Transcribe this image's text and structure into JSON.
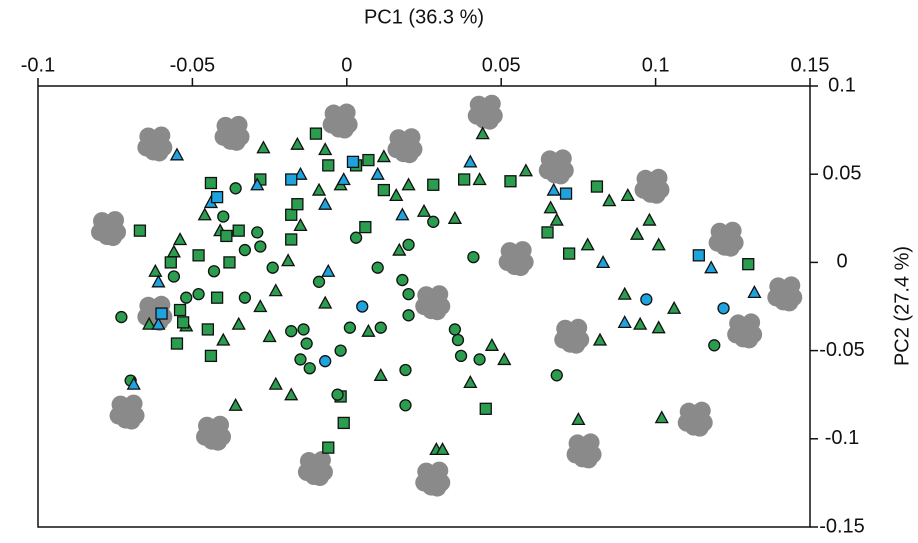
{
  "chart_data": {
    "type": "scatter",
    "xlabel": "PC1 (36.3 %)",
    "ylabel": "PC2 (27.4 %)",
    "xlim": [
      -0.1,
      0.15
    ],
    "ylim": [
      -0.15,
      0.1
    ],
    "xticks": [
      -0.1,
      -0.05,
      0,
      0.05,
      0.1,
      0.15
    ],
    "yticks": [
      0.1,
      0.05,
      0,
      -0.05,
      -0.1,
      -0.15
    ],
    "grid": false,
    "series": [
      {
        "marker": "cloud",
        "color": "#8a8a8a",
        "x": [
          -0.062,
          -0.037,
          -0.002,
          0.019,
          0.045,
          0.068,
          0.099,
          0.123,
          0.142,
          0.129,
          0.113,
          0.077,
          0.028,
          -0.01,
          -0.043,
          -0.071,
          -0.077,
          -0.062,
          0.028,
          0.055,
          0.073
        ],
        "y": [
          0.068,
          0.074,
          0.081,
          0.067,
          0.086,
          0.055,
          0.044,
          0.014,
          -0.017,
          -0.038,
          -0.088,
          -0.106,
          -0.122,
          -0.116,
          -0.096,
          -0.084,
          0.02,
          -0.028,
          -0.022,
          0.003,
          -0.041
        ]
      },
      {
        "marker": "triangle",
        "color": "#2a9d4e",
        "x": [
          -0.027,
          -0.016,
          -0.007,
          0.044,
          0.012,
          0.02,
          0.025,
          0.035,
          0.043,
          0.058,
          0.066,
          0.068,
          0.085,
          0.091,
          0.094,
          0.098,
          0.101,
          0.078,
          0.09,
          0.095,
          0.106,
          0.101,
          0.082,
          0.051,
          0.047,
          0.04,
          0.075,
          0.102,
          0.029,
          0.031,
          -0.056,
          -0.062,
          -0.054,
          -0.046,
          -0.041,
          -0.023,
          -0.028,
          -0.035,
          -0.04,
          -0.025,
          -0.023,
          -0.018,
          -0.036,
          -0.007,
          0.011,
          0.007,
          -0.019,
          -0.015,
          -0.009,
          0.016,
          0.017,
          -0.002,
          -0.052,
          -0.064
        ],
        "y": [
          0.065,
          0.067,
          0.064,
          0.073,
          0.06,
          0.044,
          0.029,
          0.025,
          0.047,
          0.052,
          0.031,
          0.024,
          0.035,
          0.038,
          0.016,
          0.024,
          0.01,
          0.01,
          -0.018,
          -0.035,
          -0.026,
          -0.037,
          -0.044,
          -0.055,
          -0.047,
          -0.068,
          -0.089,
          -0.088,
          -0.106,
          -0.106,
          0.006,
          -0.005,
          0.013,
          0.027,
          0.018,
          -0.016,
          -0.025,
          -0.035,
          -0.044,
          -0.042,
          -0.069,
          -0.075,
          -0.081,
          -0.023,
          -0.064,
          -0.039,
          0.001,
          0.021,
          0.041,
          0.038,
          0.007,
          0.044,
          -0.036,
          -0.035
        ]
      },
      {
        "marker": "square",
        "color": "#2a9d4e",
        "x": [
          -0.044,
          -0.067,
          -0.057,
          -0.039,
          -0.035,
          -0.018,
          -0.018,
          -0.01,
          -0.006,
          0.003,
          0.007,
          0.012,
          0.006,
          0.028,
          0.038,
          0.053,
          0.081,
          0.065,
          0.072,
          0.13,
          -0.054,
          -0.053,
          -0.045,
          -0.044,
          -0.055,
          -0.002,
          -0.001,
          -0.006,
          0.045,
          -0.038,
          -0.028,
          -0.016,
          -0.048,
          -0.042
        ],
        "y": [
          0.045,
          0.018,
          0.0,
          0.015,
          0.018,
          0.013,
          0.027,
          0.073,
          0.055,
          0.055,
          0.058,
          0.041,
          0.02,
          0.044,
          0.047,
          0.046,
          0.043,
          0.017,
          0.005,
          -0.001,
          -0.027,
          -0.034,
          -0.038,
          -0.053,
          -0.046,
          -0.076,
          -0.091,
          -0.105,
          -0.083,
          0.0,
          0.047,
          0.033,
          0.004,
          -0.02
        ]
      },
      {
        "marker": "circle",
        "color": "#2a9d4e",
        "x": [
          -0.036,
          -0.04,
          -0.033,
          -0.024,
          -0.048,
          -0.043,
          -0.056,
          -0.073,
          -0.07,
          -0.033,
          -0.018,
          -0.014,
          -0.013,
          -0.012,
          -0.015,
          -0.002,
          -0.003,
          -0.009,
          0.003,
          0.01,
          0.018,
          0.02,
          0.02,
          0.001,
          0.011,
          0.02,
          0.028,
          0.041,
          0.036,
          0.037,
          0.035,
          0.043,
          0.019,
          0.019,
          0.068,
          0.119,
          -0.029,
          -0.028,
          -0.052
        ],
        "y": [
          0.042,
          0.026,
          0.007,
          -0.003,
          -0.018,
          -0.005,
          -0.008,
          -0.031,
          -0.067,
          -0.02,
          -0.039,
          -0.038,
          -0.046,
          -0.06,
          -0.055,
          -0.05,
          -0.075,
          -0.011,
          0.014,
          -0.003,
          -0.01,
          -0.018,
          -0.03,
          -0.037,
          -0.037,
          0.01,
          0.023,
          0.003,
          -0.044,
          -0.053,
          -0.038,
          -0.055,
          -0.061,
          -0.081,
          -0.064,
          -0.047,
          0.017,
          0.009,
          -0.02
        ]
      },
      {
        "marker": "triangle",
        "color": "#1fa3df",
        "x": [
          -0.055,
          -0.029,
          -0.044,
          0.04,
          0.067,
          -0.006,
          -0.061,
          -0.061,
          -0.069,
          0.083,
          0.09,
          0.118,
          0.132,
          0.018,
          -0.001,
          0.01,
          -0.015,
          -0.007
        ],
        "y": [
          0.061,
          0.044,
          0.034,
          0.057,
          0.041,
          -0.005,
          -0.011,
          -0.035,
          -0.069,
          0.0,
          -0.034,
          -0.003,
          -0.017,
          0.027,
          0.047,
          0.05,
          0.05,
          0.033
        ]
      },
      {
        "marker": "square",
        "color": "#1fa3df",
        "x": [
          -0.042,
          -0.018,
          0.071,
          0.114,
          -0.06,
          0.002
        ],
        "y": [
          0.037,
          0.047,
          0.039,
          0.004,
          -0.029,
          0.057
        ]
      },
      {
        "marker": "circle",
        "color": "#1fa3df",
        "x": [
          0.005,
          -0.007,
          0.097,
          0.122
        ],
        "y": [
          -0.025,
          -0.056,
          -0.021,
          -0.026
        ]
      }
    ]
  }
}
